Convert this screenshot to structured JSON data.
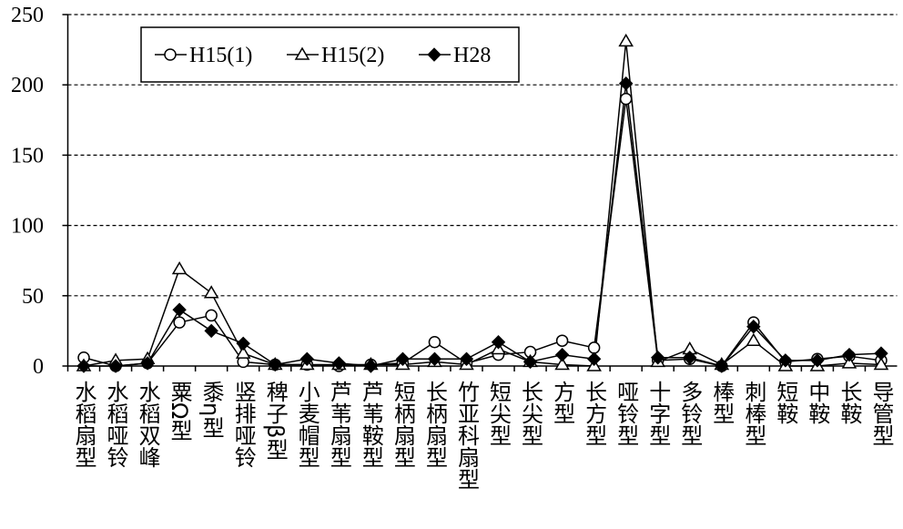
{
  "chart_data": {
    "type": "line",
    "categories": [
      "水稻扇型",
      "水稻哑铃",
      "水稻双峰",
      "粟Ω型",
      "黍η型",
      "竖排哑铃",
      "稗子β型",
      "小麦帽型",
      "芦苇扇型",
      "芦苇鞍型",
      "短柄扇型",
      "长柄扇型",
      "竹亚科扇型",
      "短尖型",
      "长尖型",
      "方型",
      "长方型",
      "哑铃型",
      "十字型",
      "多铃型",
      "棒型",
      "刺棒型",
      "短鞍",
      "中鞍",
      "长鞍",
      "导管型"
    ],
    "series": [
      {
        "name": "H15(1)",
        "color": "#000000",
        "marker": "circle",
        "values": [
          6,
          0,
          2,
          31,
          36,
          3,
          1,
          1,
          0,
          1,
          2,
          17,
          2,
          8,
          10,
          18,
          13,
          190,
          4,
          5,
          0,
          31,
          3,
          5,
          7,
          4
        ]
      },
      {
        "name": "H15(2)",
        "color": "#000000",
        "marker": "triangle",
        "values": [
          0,
          4,
          5,
          69,
          52,
          9,
          1,
          1,
          1,
          1,
          1,
          3,
          1,
          12,
          3,
          1,
          0,
          231,
          3,
          12,
          1,
          18,
          0,
          0,
          2,
          1
        ]
      },
      {
        "name": "H28",
        "color": "#000000",
        "marker": "diamond",
        "values": [
          0,
          0,
          2,
          40,
          25,
          16,
          1,
          5,
          2,
          0,
          5,
          5,
          5,
          17,
          3,
          8,
          5,
          201,
          6,
          6,
          0,
          28,
          4,
          4,
          8,
          9
        ]
      }
    ],
    "ylim": [
      0,
      250
    ],
    "yticks": [
      0,
      50,
      100,
      150,
      200,
      250
    ],
    "grid": true,
    "legend": "upper left"
  }
}
